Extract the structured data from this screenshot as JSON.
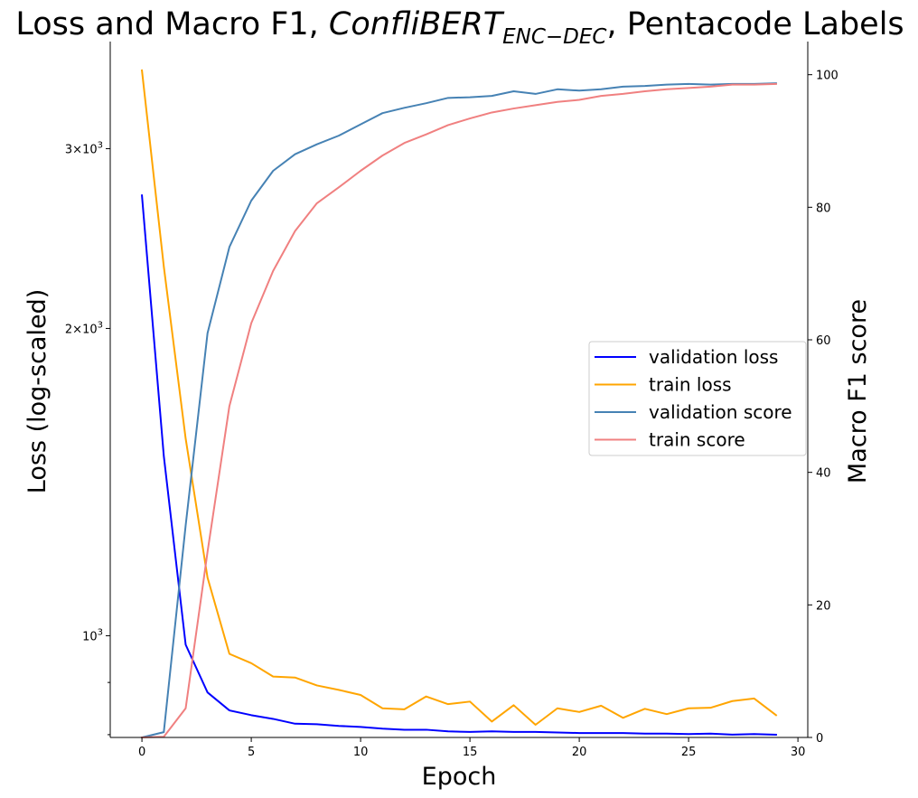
{
  "chart_data": {
    "type": "line",
    "title": {
      "prefix": "Loss and Macro F1, ",
      "model_base": "ConfliBERT",
      "model_sub": "ENC−DEC",
      "suffix": ", Pentacode Labels"
    },
    "xlabel": "Epoch",
    "ylabel_left": "Loss (log-scaled)",
    "ylabel_right": "Macro F1 score",
    "x_ticks": [
      0,
      5,
      10,
      15,
      20,
      25,
      30
    ],
    "x_tick_labels": [
      "0",
      "5",
      "10",
      "15",
      "20",
      "25",
      "30"
    ],
    "xlim": [
      -1.45,
      30.45
    ],
    "y_left_scale": "log",
    "y_left_lim": [
      795,
      3820
    ],
    "y_left_major_ticks": [
      {
        "value": 1000,
        "base": "10",
        "exp": "3",
        "mult": ""
      },
      {
        "value": 2000,
        "base": "10",
        "exp": "3",
        "mult": "2×"
      },
      {
        "value": 3000,
        "base": "10",
        "exp": "3",
        "mult": "3×"
      }
    ],
    "y_left_minor_ticks": [
      800,
      900
    ],
    "y_right_lim": [
      0,
      105
    ],
    "y_right_ticks": [
      0,
      20,
      40,
      60,
      80,
      100
    ],
    "y_right_tick_labels": [
      "0",
      "20",
      "40",
      "60",
      "80",
      "100"
    ],
    "grid": false,
    "legend_position": "right",
    "x": [
      0,
      1,
      2,
      3,
      4,
      5,
      6,
      7,
      8,
      9,
      10,
      11,
      12,
      13,
      14,
      15,
      16,
      17,
      18,
      19,
      20,
      21,
      22,
      23,
      24,
      25,
      26,
      27,
      28,
      29
    ],
    "series": [
      {
        "name": "validation loss",
        "axis": "left",
        "color": "#0000ff",
        "values": [
          2700,
          1500,
          980,
          880,
          845,
          836,
          829,
          820,
          819,
          816,
          814,
          811,
          809,
          809,
          806,
          805,
          806,
          805,
          805,
          804,
          803,
          803,
          803,
          802,
          802,
          801,
          802,
          800,
          801,
          800
        ]
      },
      {
        "name": "train loss",
        "axis": "left",
        "color": "#ffa500",
        "values": [
          3580,
          2300,
          1560,
          1140,
          960,
          940,
          912,
          910,
          894,
          885,
          875,
          849,
          847,
          872,
          857,
          862,
          824,
          855,
          818,
          849,
          842,
          854,
          831,
          848,
          838,
          849,
          850,
          863,
          868,
          836
        ]
      },
      {
        "name": "validation score",
        "axis": "right",
        "color": "#4682b4",
        "values": [
          0,
          0.8,
          32,
          61,
          74,
          81,
          85.5,
          88,
          89.5,
          90.8,
          92.5,
          94.2,
          95,
          95.7,
          96.5,
          96.6,
          96.8,
          97.5,
          97.1,
          97.8,
          97.6,
          97.8,
          98.2,
          98.3,
          98.5,
          98.6,
          98.5,
          98.6,
          98.6,
          98.7
        ]
      },
      {
        "name": "train score",
        "axis": "right",
        "color": "#f08080",
        "values": [
          0,
          0.1,
          4.4,
          28,
          50,
          62.5,
          70.4,
          76.4,
          80.6,
          83,
          85.5,
          87.8,
          89.7,
          91,
          92.4,
          93.4,
          94.3,
          94.9,
          95.4,
          95.9,
          96.2,
          96.8,
          97.1,
          97.5,
          97.8,
          98,
          98.2,
          98.5,
          98.5,
          98.6
        ]
      }
    ]
  }
}
